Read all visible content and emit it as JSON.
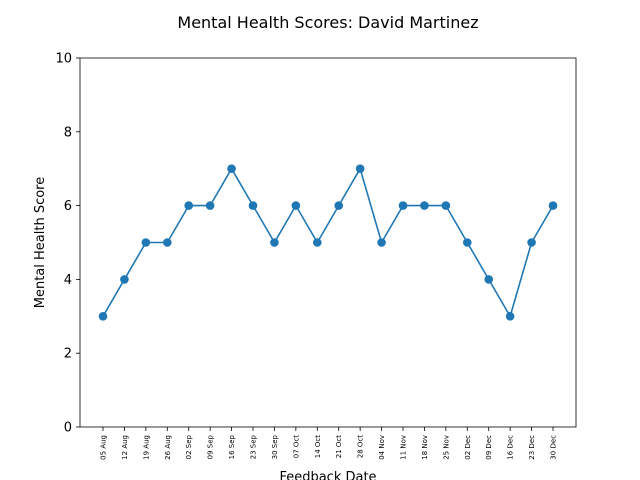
{
  "chart_data": {
    "type": "line",
    "title": "Mental Health Scores: David Martinez",
    "xlabel": "Feedback Date",
    "ylabel": "Mental Health Score",
    "ylim": [
      0,
      10
    ],
    "yticks": [
      0,
      2,
      4,
      6,
      8,
      10
    ],
    "grid": false,
    "color": "#1f77b4",
    "categories": [
      "05 Aug",
      "12 Aug",
      "19 Aug",
      "26 Aug",
      "02 Sep",
      "09 Sep",
      "16 Sep",
      "23 Sep",
      "30 Sep",
      "07 Oct",
      "14 Oct",
      "21 Oct",
      "28 Oct",
      "04 Nov",
      "11 Nov",
      "18 Nov",
      "25 Nov",
      "02 Dec",
      "09 Dec",
      "16 Dec",
      "23 Dec",
      "30 Dec"
    ],
    "values": [
      3,
      4,
      5,
      5,
      6,
      6,
      7,
      6,
      5,
      6,
      5,
      6,
      7,
      5,
      6,
      6,
      6,
      5,
      4,
      3,
      5,
      6
    ]
  }
}
